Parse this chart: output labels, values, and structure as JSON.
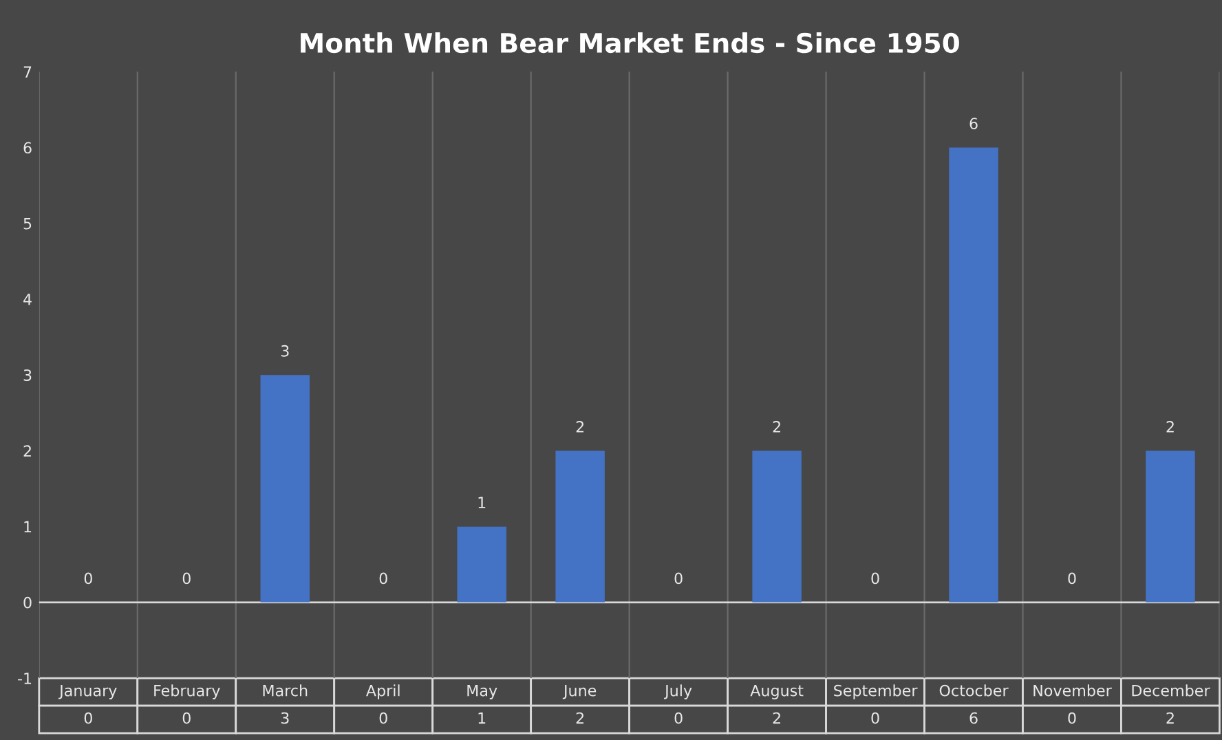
{
  "chart_data": {
    "type": "bar",
    "title": "Month When Bear Market Ends - Since 1950",
    "categories": [
      "January",
      "February",
      "March",
      "April",
      "May",
      "June",
      "July",
      "August",
      "September",
      "Octocber",
      "November",
      "December"
    ],
    "values": [
      0,
      0,
      3,
      0,
      1,
      2,
      0,
      2,
      0,
      6,
      0,
      2
    ],
    "annotations": [
      "0",
      "0",
      "3",
      "0",
      "1",
      "2",
      "0",
      "2",
      "0",
      "6",
      "0",
      "2"
    ],
    "color": "#4472c4",
    "ylim": [
      -1,
      7
    ],
    "yticks": [
      -1,
      0,
      1,
      2,
      3,
      4,
      5,
      6,
      7
    ],
    "grid": "x",
    "data_labels": true
  }
}
